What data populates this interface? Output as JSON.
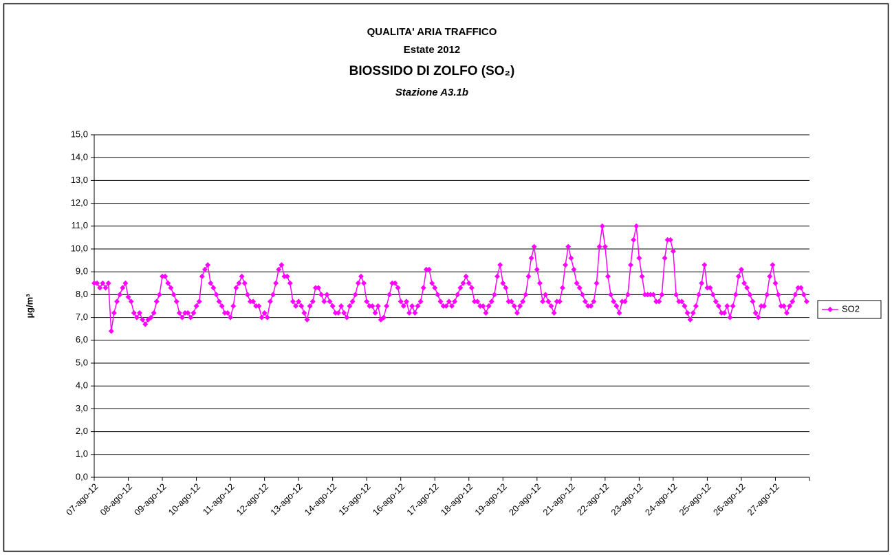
{
  "chart_data": {
    "type": "line",
    "title": "QUALITA' ARIA TRAFFICO",
    "subtitle": "Estate 2012",
    "title2": "BIOSSIDO DI ZOLFO (SO₂)",
    "caption": "Stazione A3.1b",
    "ylabel": "µg/m³",
    "legend": "right",
    "grid": true,
    "ylim": [
      0,
      15
    ],
    "yticks": [
      {
        "value": 0,
        "label": "0,0"
      },
      {
        "value": 1,
        "label": "1,0"
      },
      {
        "value": 2,
        "label": "2,0"
      },
      {
        "value": 3,
        "label": "3,0"
      },
      {
        "value": 4,
        "label": "4,0"
      },
      {
        "value": 5,
        "label": "5,0"
      },
      {
        "value": 6,
        "label": "6,0"
      },
      {
        "value": 7,
        "label": "7,0"
      },
      {
        "value": 8,
        "label": "8,0"
      },
      {
        "value": 9,
        "label": "9,0"
      },
      {
        "value": 10,
        "label": "10,0"
      },
      {
        "value": 11,
        "label": "11,0"
      },
      {
        "value": 12,
        "label": "12,0"
      },
      {
        "value": 13,
        "label": "13,0"
      },
      {
        "value": 14,
        "label": "14,0"
      },
      {
        "value": 15,
        "label": "15,0"
      }
    ],
    "categories": [
      "07-ago-12",
      null,
      null,
      null,
      null,
      null,
      null,
      null,
      null,
      null,
      null,
      null,
      "08-ago-12",
      null,
      null,
      null,
      null,
      null,
      null,
      null,
      null,
      null,
      null,
      null,
      "09-ago-12",
      null,
      null,
      null,
      null,
      null,
      null,
      null,
      null,
      null,
      null,
      null,
      "10-ago-12",
      null,
      null,
      null,
      null,
      null,
      null,
      null,
      null,
      null,
      null,
      null,
      "11-ago-12",
      null,
      null,
      null,
      null,
      null,
      null,
      null,
      null,
      null,
      null,
      null,
      "12-ago-12",
      null,
      null,
      null,
      null,
      null,
      null,
      null,
      null,
      null,
      null,
      null,
      "13-ago-12",
      null,
      null,
      null,
      null,
      null,
      null,
      null,
      null,
      null,
      null,
      null,
      "14-ago-12",
      null,
      null,
      null,
      null,
      null,
      null,
      null,
      null,
      null,
      null,
      null,
      "15-ago-12",
      null,
      null,
      null,
      null,
      null,
      null,
      null,
      null,
      null,
      null,
      null,
      "16-ago-12",
      null,
      null,
      null,
      null,
      null,
      null,
      null,
      null,
      null,
      null,
      null,
      "17-ago-12",
      null,
      null,
      null,
      null,
      null,
      null,
      null,
      null,
      null,
      null,
      null,
      "18-ago-12",
      null,
      null,
      null,
      null,
      null,
      null,
      null,
      null,
      null,
      null,
      null,
      "19-ago-12",
      null,
      null,
      null,
      null,
      null,
      null,
      null,
      null,
      null,
      null,
      null,
      "20-ago-12",
      null,
      null,
      null,
      null,
      null,
      null,
      null,
      null,
      null,
      null,
      null,
      "21-ago-12",
      null,
      null,
      null,
      null,
      null,
      null,
      null,
      null,
      null,
      null,
      null,
      "22-ago-12",
      null,
      null,
      null,
      null,
      null,
      null,
      null,
      null,
      null,
      null,
      null,
      "23-ago-12",
      null,
      null,
      null,
      null,
      null,
      null,
      null,
      null,
      null,
      null,
      null,
      "24-ago-12",
      null,
      null,
      null,
      null,
      null,
      null,
      null,
      null,
      null,
      null,
      null,
      "25-ago-12",
      null,
      null,
      null,
      null,
      null,
      null,
      null,
      null,
      null,
      null,
      null,
      "26-ago-12",
      null,
      null,
      null,
      null,
      null,
      null,
      null,
      null,
      null,
      null,
      null,
      "27-ago-12",
      null,
      null,
      null,
      null,
      null,
      null,
      null,
      null,
      null,
      null,
      null
    ],
    "series": [
      {
        "name": "SO2",
        "color": "#ff00ff",
        "values": [
          8.5,
          8.5,
          8.3,
          8.5,
          8.3,
          8.5,
          6.4,
          7.2,
          7.7,
          8.0,
          8.3,
          8.5,
          7.9,
          7.7,
          7.2,
          7.0,
          7.2,
          6.9,
          6.7,
          6.9,
          7.0,
          7.2,
          7.7,
          8.0,
          8.8,
          8.8,
          8.5,
          8.3,
          8.0,
          7.7,
          7.2,
          7.0,
          7.2,
          7.2,
          7.0,
          7.2,
          7.5,
          7.7,
          8.8,
          9.1,
          9.3,
          8.5,
          8.3,
          8.0,
          7.7,
          7.5,
          7.2,
          7.2,
          7.0,
          7.5,
          8.3,
          8.5,
          8.8,
          8.5,
          8.0,
          7.7,
          7.7,
          7.5,
          7.5,
          7.0,
          7.2,
          7.0,
          7.7,
          8.0,
          8.5,
          9.1,
          9.3,
          8.8,
          8.8,
          8.5,
          7.7,
          7.5,
          7.7,
          7.5,
          7.2,
          6.9,
          7.5,
          7.7,
          8.3,
          8.3,
          8.0,
          7.7,
          8.0,
          7.7,
          7.5,
          7.2,
          7.2,
          7.5,
          7.2,
          7.0,
          7.5,
          7.7,
          8.0,
          8.5,
          8.8,
          8.5,
          7.7,
          7.5,
          7.5,
          7.2,
          7.5,
          6.9,
          7.0,
          7.5,
          8.0,
          8.5,
          8.5,
          8.3,
          7.7,
          7.5,
          7.7,
          7.2,
          7.5,
          7.2,
          7.5,
          7.7,
          8.3,
          9.1,
          9.1,
          8.5,
          8.3,
          8.0,
          7.7,
          7.5,
          7.5,
          7.7,
          7.5,
          7.7,
          8.0,
          8.3,
          8.5,
          8.8,
          8.5,
          8.3,
          7.7,
          7.7,
          7.5,
          7.5,
          7.2,
          7.5,
          7.7,
          8.0,
          8.8,
          9.3,
          8.5,
          8.3,
          7.7,
          7.7,
          7.5,
          7.2,
          7.5,
          7.7,
          8.0,
          8.8,
          9.6,
          10.1,
          9.1,
          8.5,
          7.7,
          8.0,
          7.7,
          7.5,
          7.2,
          7.7,
          7.7,
          8.3,
          9.3,
          10.1,
          9.6,
          9.1,
          8.5,
          8.3,
          8.0,
          7.7,
          7.5,
          7.5,
          7.7,
          8.5,
          10.1,
          11.0,
          10.1,
          8.8,
          8.0,
          7.7,
          7.5,
          7.2,
          7.7,
          7.7,
          8.0,
          9.3,
          10.4,
          11.0,
          9.6,
          8.8,
          8.0,
          8.0,
          8.0,
          8.0,
          7.7,
          7.7,
          8.0,
          9.6,
          10.4,
          10.4,
          9.9,
          8.0,
          7.7,
          7.7,
          7.5,
          7.2,
          6.9,
          7.2,
          7.5,
          8.0,
          8.5,
          9.3,
          8.3,
          8.3,
          8.0,
          7.7,
          7.5,
          7.2,
          7.2,
          7.5,
          7.0,
          7.5,
          8.0,
          8.8,
          9.1,
          8.5,
          8.3,
          8.0,
          7.7,
          7.2,
          7.0,
          7.5,
          7.5,
          8.0,
          8.8,
          9.3,
          8.5,
          8.0,
          7.5,
          7.5,
          7.2,
          7.5,
          7.7,
          8.0,
          8.3,
          8.3,
          8.0,
          7.7
        ]
      }
    ]
  }
}
